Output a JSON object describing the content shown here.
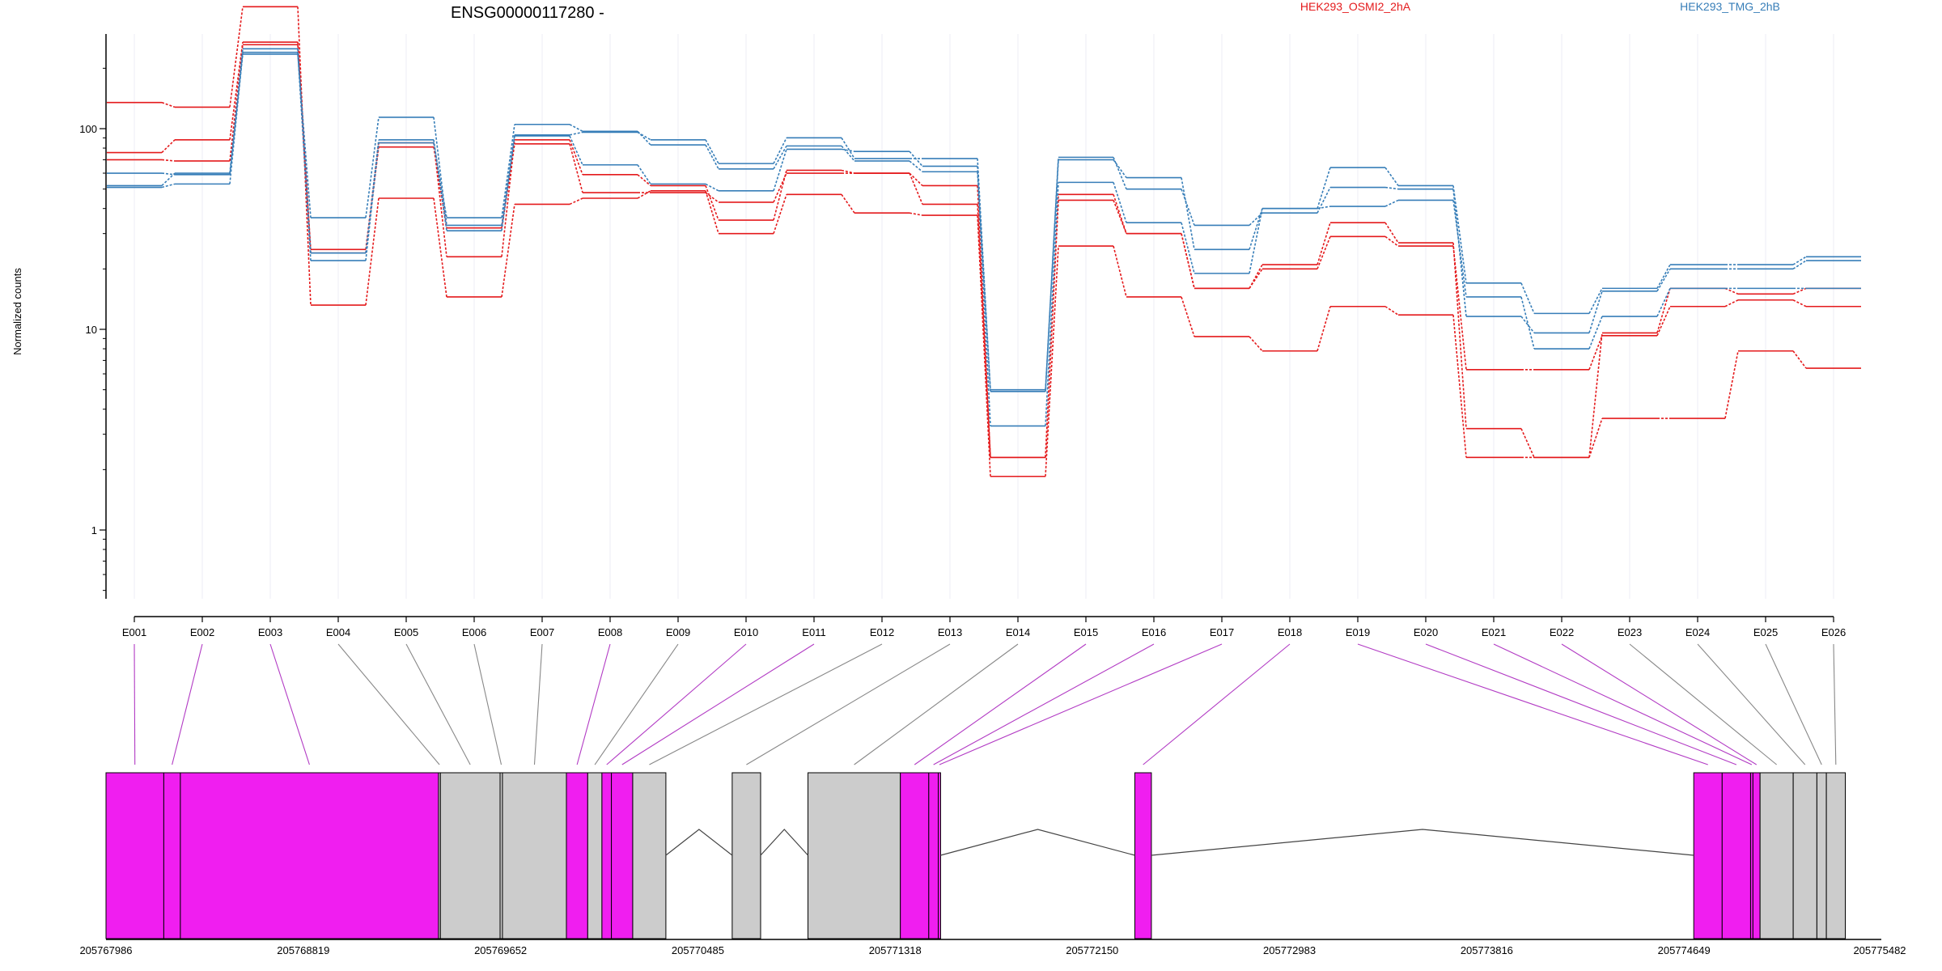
{
  "chart_data": {
    "type": "line",
    "title": "ENSG00000117280 -",
    "ylabel": "Normalized counts",
    "yscale": "log",
    "ylim": [
      0.4,
      600
    ],
    "yticks": [
      1,
      10,
      100
    ],
    "ytick_labels": [
      "1",
      "10",
      "100"
    ],
    "grid": "vertical",
    "legend_position": "top",
    "categories": [
      "E001",
      "E002",
      "E003",
      "E004",
      "E005",
      "E006",
      "E007",
      "E008",
      "E009",
      "E010",
      "E011",
      "E012",
      "E013",
      "E014",
      "E015",
      "E016",
      "E017",
      "E018",
      "E019",
      "E020",
      "E021",
      "E022",
      "E023",
      "E024",
      "E025",
      "E026"
    ],
    "series": [
      {
        "group": "HEK293_OSMI2_2hA",
        "color": "#e41a1c",
        "values": [
          135,
          128,
          405,
          13.2,
          45,
          14.5,
          42,
          45,
          49,
          30,
          47,
          38,
          37,
          1.85,
          26,
          14.5,
          9.2,
          7.8,
          13,
          11.8,
          2.3,
          2.3,
          3.6,
          3.6,
          7.8,
          6.4
        ]
      },
      {
        "group": "HEK293_OSMI2_2hA",
        "color": "#e41a1c",
        "values": [
          76,
          88,
          270,
          25,
          85,
          23,
          88,
          59,
          52,
          35,
          62,
          60,
          52,
          2.3,
          44,
          30,
          16,
          20,
          29,
          26,
          6.3,
          6.3,
          9.3,
          13,
          14,
          13
        ]
      },
      {
        "group": "HEK293_OSMI2_2hA",
        "color": "#e41a1c",
        "values": [
          70,
          69,
          262,
          24,
          81,
          32,
          84,
          48,
          48,
          43,
          60,
          60,
          42,
          2.3,
          47,
          30,
          16,
          21,
          34,
          27,
          3.2,
          2.3,
          9.6,
          16,
          15,
          16
        ]
      },
      {
        "group": "HEK293_TMG_2hB",
        "color": "#377eb8",
        "values": [
          51,
          53,
          240,
          22,
          85,
          36,
          105,
          97,
          83,
          63,
          82,
          69,
          61,
          5,
          70,
          57,
          25,
          40,
          64,
          52,
          17,
          12,
          16,
          21,
          21,
          23
        ]
      },
      {
        "group": "HEK293_TMG_2hB",
        "color": "#377eb8",
        "values": [
          60,
          59,
          235,
          36,
          114,
          33,
          93,
          96,
          88,
          67,
          90,
          71,
          71,
          4.9,
          72,
          50,
          33,
          38,
          51,
          50,
          11.6,
          9.6,
          15.5,
          20,
          20,
          22
        ]
      },
      {
        "group": "HEK293_TMG_2hB",
        "color": "#377eb8",
        "values": [
          52,
          60,
          250,
          24,
          88,
          31,
          92,
          66,
          53,
          49,
          79,
          77,
          65,
          3.3,
          54,
          34,
          19,
          40,
          41,
          44,
          14.5,
          8,
          11.6,
          16,
          16,
          16
        ]
      }
    ],
    "legend": [
      {
        "label": "HEK293_OSMI2_2hA",
        "color": "#e41a1c"
      },
      {
        "label": "HEK293_TMG_2hB",
        "color": "#377eb8"
      }
    ],
    "exons": [
      {
        "id": "E001",
        "start": 205767986,
        "end": 205768230,
        "color": "#f01ef0"
      },
      {
        "id": "E002",
        "start": 205768230,
        "end": 205768300,
        "color": "#f01ef0"
      },
      {
        "id": "E003",
        "start": 205768300,
        "end": 205769390,
        "color": "#f01ef0"
      },
      {
        "id": "E004",
        "start": 205769390,
        "end": 205769398,
        "color": "#cccccc"
      },
      {
        "id": "E005",
        "start": 205769398,
        "end": 205769650,
        "color": "#cccccc"
      },
      {
        "id": "E006",
        "start": 205769650,
        "end": 205769660,
        "color": "#cccccc"
      },
      {
        "id": "E007",
        "start": 205769660,
        "end": 205769930,
        "color": "#cccccc"
      },
      {
        "id": "E008",
        "start": 205769930,
        "end": 205770020,
        "color": "#f01ef0"
      },
      {
        "id": "E009",
        "start": 205770020,
        "end": 205770080,
        "color": "#cccccc"
      },
      {
        "id": "E010",
        "start": 205770080,
        "end": 205770120,
        "color": "#f01ef0"
      },
      {
        "id": "E011",
        "start": 205770120,
        "end": 205770210,
        "color": "#f01ef0"
      },
      {
        "id": "E012",
        "start": 205770210,
        "end": 205770350,
        "color": "#cccccc"
      },
      {
        "id": "E013",
        "start": 205770630,
        "end": 205770750,
        "color": "#cccccc"
      },
      {
        "id": "E014",
        "start": 205770950,
        "end": 205771340,
        "color": "#cccccc"
      },
      {
        "id": "E015",
        "start": 205771340,
        "end": 205771460,
        "color": "#f01ef0"
      },
      {
        "id": "E016",
        "start": 205771460,
        "end": 205771500,
        "color": "#f01ef0"
      },
      {
        "id": "E017",
        "start": 205771500,
        "end": 205771510,
        "color": "#f01ef0"
      },
      {
        "id": "E018",
        "start": 205772330,
        "end": 205772400,
        "color": "#f01ef0"
      },
      {
        "id": "E019",
        "start": 205774690,
        "end": 205774810,
        "color": "#f01ef0"
      },
      {
        "id": "E020",
        "start": 205774810,
        "end": 205774930,
        "color": "#f01ef0"
      },
      {
        "id": "E021",
        "start": 205774930,
        "end": 205774940,
        "color": "#f01ef0"
      },
      {
        "id": "E022",
        "start": 205774940,
        "end": 205774970,
        "color": "#f01ef0"
      },
      {
        "id": "E023",
        "start": 205774970,
        "end": 205775110,
        "color": "#cccccc"
      },
      {
        "id": "E024",
        "start": 205775110,
        "end": 205775210,
        "color": "#cccccc"
      },
      {
        "id": "E025",
        "start": 205775210,
        "end": 205775250,
        "color": "#cccccc"
      },
      {
        "id": "E026",
        "start": 205775250,
        "end": 205775330,
        "color": "#cccccc"
      }
    ],
    "introns": [
      {
        "start": 205770350,
        "end": 205770630
      },
      {
        "start": 205770750,
        "end": 205770950
      },
      {
        "start": 205771510,
        "end": 205772330
      },
      {
        "start": 205772400,
        "end": 205774690
      }
    ],
    "coordinate_ticks": [
      205767986,
      205768819,
      205769652,
      205770485,
      205771318,
      205772150,
      205772983,
      205773816,
      205774649,
      205775482
    ],
    "coordinate_tick_labels": [
      "205767986",
      "205768819",
      "205769652",
      "205770485",
      "205771318",
      "205772150",
      "205772983",
      "205773816",
      "205774649",
      "205775482"
    ]
  }
}
